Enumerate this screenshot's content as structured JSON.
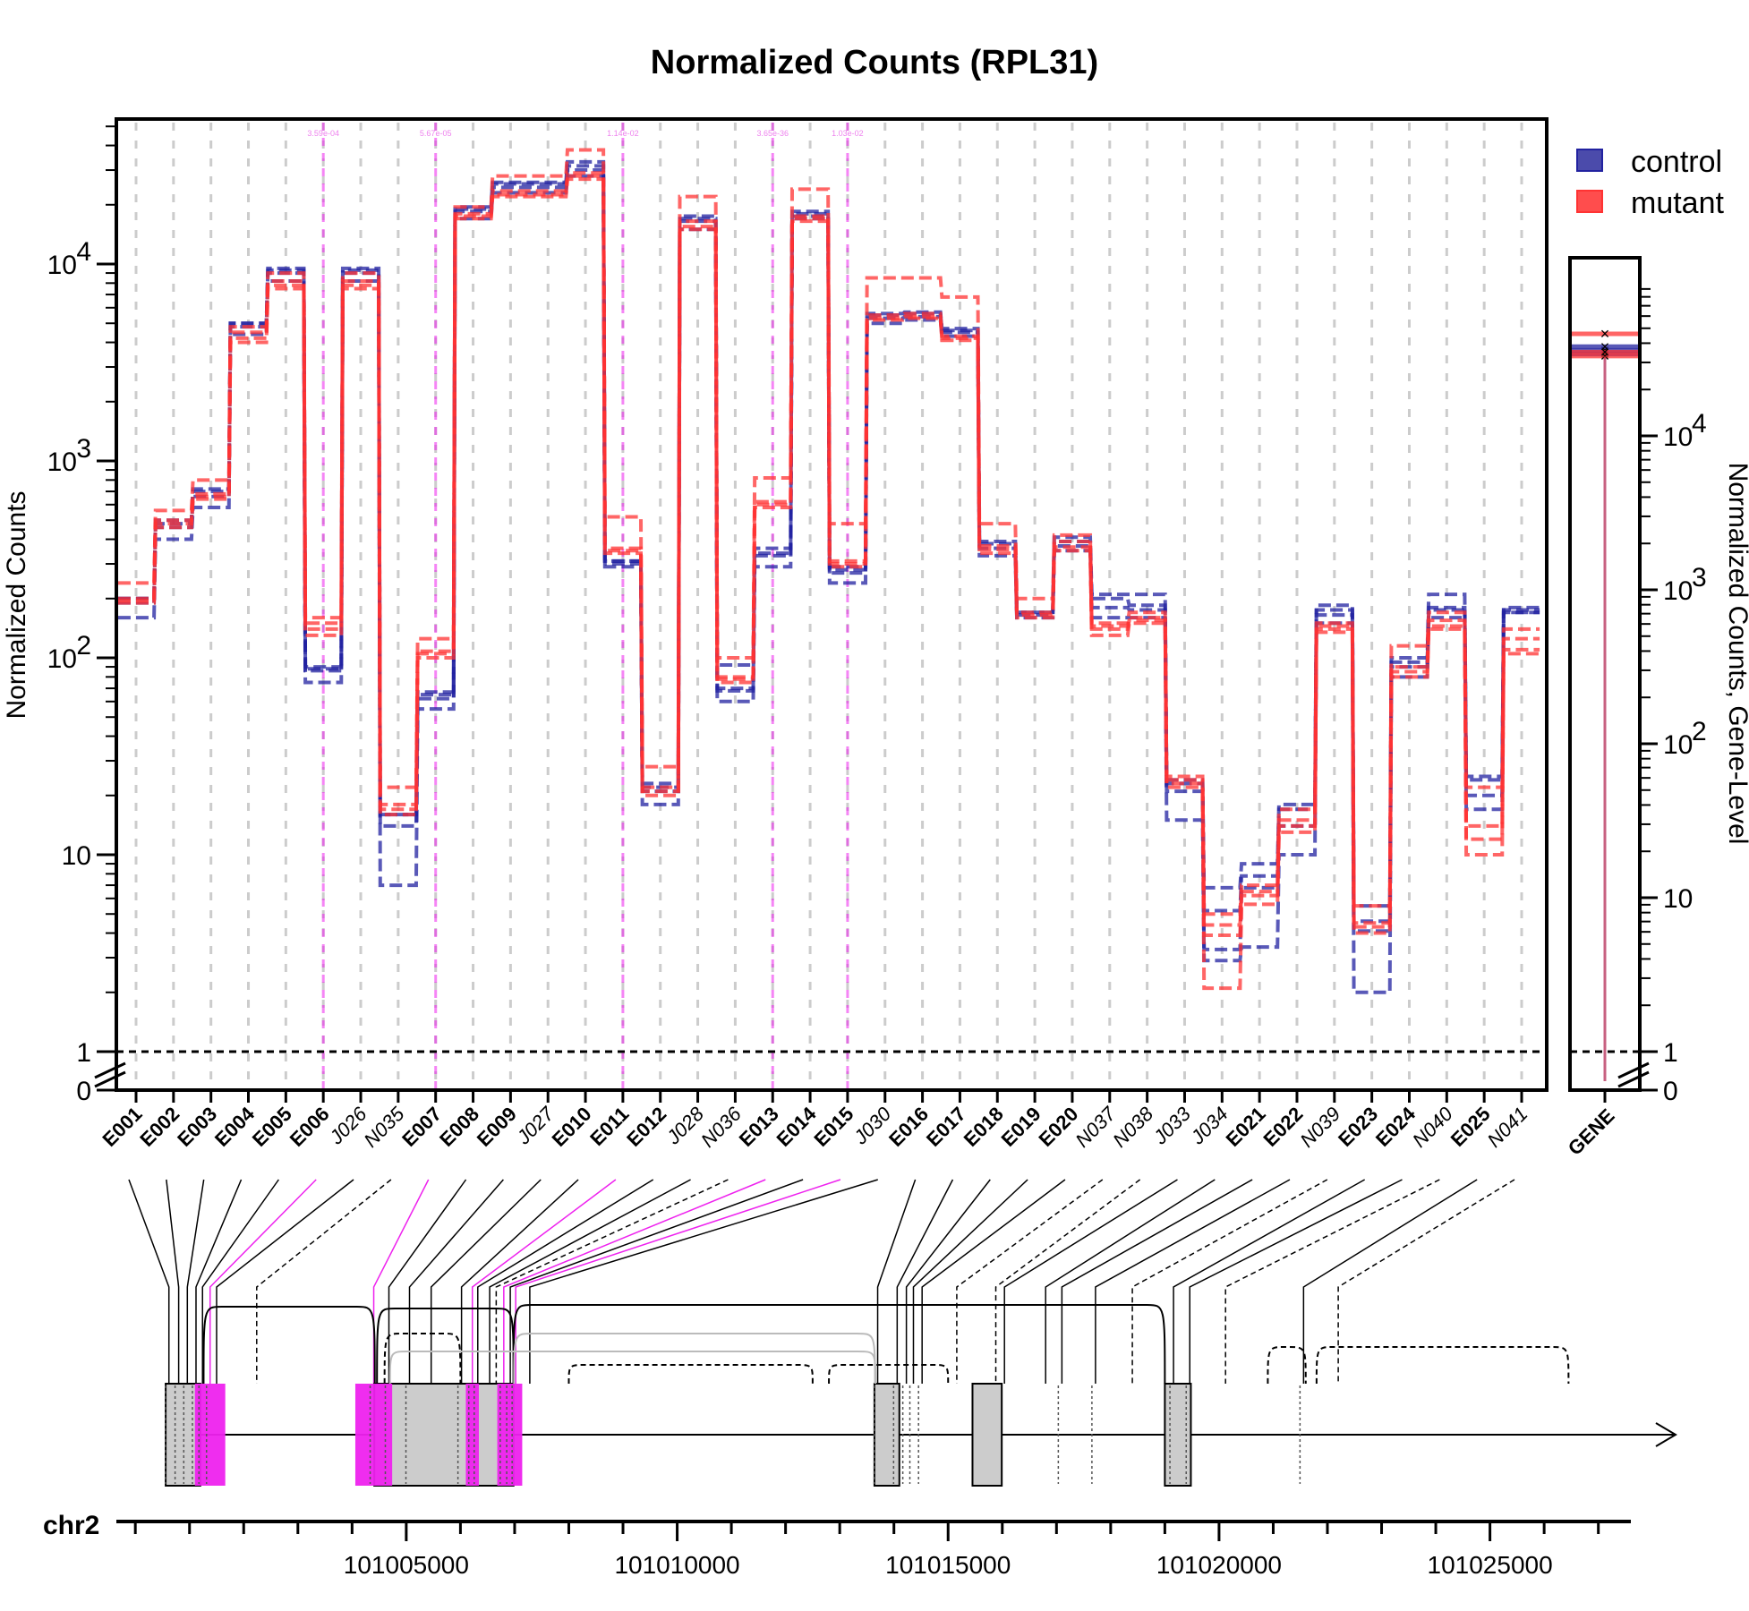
{
  "chart_data": {
    "type": "line",
    "title": "Normalized Counts (RPL31)",
    "ylabel": "Normalized Counts",
    "ylabel_right": "Normalized Counts, Gene-Level",
    "y_scale": "log",
    "y_ticks": [
      {
        "value": 0,
        "label": "0"
      },
      {
        "value": 1,
        "label": "1"
      },
      {
        "value": 10,
        "label": "10"
      },
      {
        "value": 100,
        "label": "10",
        "sup": "2"
      },
      {
        "value": 1000,
        "label": "10",
        "sup": "3"
      },
      {
        "value": 10000,
        "label": "10",
        "sup": "4"
      }
    ],
    "gene_y_ticks": [
      {
        "value": 0,
        "label": "0"
      },
      {
        "value": 1,
        "label": "1"
      },
      {
        "value": 10,
        "label": "10"
      },
      {
        "value": 100,
        "label": "10",
        "sup": "2"
      },
      {
        "value": 1000,
        "label": "10",
        "sup": "3"
      },
      {
        "value": 10000,
        "label": "10",
        "sup": "4"
      }
    ],
    "grid": true,
    "legend_position": "top-right",
    "colors": {
      "control": "#2222a0",
      "mutant": "#ff3333",
      "highlight": "#ee22ee",
      "grid": "#cccccc",
      "exon_fill": "#cccccc"
    },
    "features": [
      {
        "id": "E001",
        "kind": "exon",
        "sig": false
      },
      {
        "id": "E002",
        "kind": "exon",
        "sig": false
      },
      {
        "id": "E003",
        "kind": "exon",
        "sig": false
      },
      {
        "id": "E004",
        "kind": "exon",
        "sig": false
      },
      {
        "id": "E005",
        "kind": "exon",
        "sig": false
      },
      {
        "id": "E006",
        "kind": "exon",
        "sig": true,
        "p": "3.59e-04"
      },
      {
        "id": "J026",
        "kind": "junction",
        "sig": false
      },
      {
        "id": "N035",
        "kind": "novel",
        "sig": false
      },
      {
        "id": "E007",
        "kind": "exon",
        "sig": true,
        "p": "5.67e-05"
      },
      {
        "id": "E008",
        "kind": "exon",
        "sig": false
      },
      {
        "id": "E009",
        "kind": "exon",
        "sig": false
      },
      {
        "id": "J027",
        "kind": "junction",
        "sig": false
      },
      {
        "id": "E010",
        "kind": "exon",
        "sig": false
      },
      {
        "id": "E011",
        "kind": "exon",
        "sig": true,
        "p": "1.14e-02"
      },
      {
        "id": "E012",
        "kind": "exon",
        "sig": false
      },
      {
        "id": "J028",
        "kind": "junction",
        "sig": false
      },
      {
        "id": "N036",
        "kind": "novel",
        "sig": false
      },
      {
        "id": "E013",
        "kind": "exon",
        "sig": true,
        "p": "3.65e-36"
      },
      {
        "id": "E014",
        "kind": "exon",
        "sig": false
      },
      {
        "id": "E015",
        "kind": "exon",
        "sig": true,
        "p": "1.03e-02"
      },
      {
        "id": "J030",
        "kind": "junction",
        "sig": false
      },
      {
        "id": "E016",
        "kind": "exon",
        "sig": false
      },
      {
        "id": "E017",
        "kind": "exon",
        "sig": false
      },
      {
        "id": "E018",
        "kind": "exon",
        "sig": false
      },
      {
        "id": "E019",
        "kind": "exon",
        "sig": false
      },
      {
        "id": "E020",
        "kind": "exon",
        "sig": false
      },
      {
        "id": "N037",
        "kind": "novel",
        "sig": false
      },
      {
        "id": "N038",
        "kind": "novel",
        "sig": false
      },
      {
        "id": "J033",
        "kind": "junction",
        "sig": false
      },
      {
        "id": "J034",
        "kind": "junction",
        "sig": false
      },
      {
        "id": "E021",
        "kind": "exon",
        "sig": false
      },
      {
        "id": "E022",
        "kind": "exon",
        "sig": false
      },
      {
        "id": "N039",
        "kind": "novel",
        "sig": false
      },
      {
        "id": "E023",
        "kind": "exon",
        "sig": false
      },
      {
        "id": "E024",
        "kind": "exon",
        "sig": false
      },
      {
        "id": "N040",
        "kind": "novel",
        "sig": false
      },
      {
        "id": "E025",
        "kind": "exon",
        "sig": false
      },
      {
        "id": "N041",
        "kind": "novel",
        "sig": false
      }
    ],
    "series": [
      {
        "name": "control",
        "group": "control",
        "values": [
          160,
          400,
          580,
          4400,
          8200,
          75,
          8200,
          7,
          55,
          17000,
          23000,
          23000,
          28000,
          290,
          18,
          15000,
          60,
          290,
          17000,
          240,
          5000,
          5200,
          4300,
          330,
          160,
          350,
          160,
          160,
          15,
          2.9,
          3.4,
          10,
          150,
          2,
          80,
          160,
          17,
          170
        ]
      },
      {
        "name": "control",
        "group": "control",
        "values": [
          190,
          460,
          660,
          4800,
          9000,
          86,
          9000,
          14,
          62,
          18500,
          24500,
          24500,
          30000,
          300,
          21,
          16500,
          68,
          330,
          17500,
          270,
          5300,
          5400,
          4500,
          360,
          165,
          370,
          180,
          175,
          21,
          3.3,
          6.8,
          14,
          165,
          4.1,
          90,
          175,
          20,
          170
        ]
      },
      {
        "name": "control",
        "group": "control",
        "values": [
          200,
          480,
          700,
          5000,
          9300,
          90,
          9300,
          16,
          65,
          19000,
          25500,
          25500,
          31500,
          310,
          22,
          17000,
          70,
          340,
          18000,
          280,
          5500,
          5600,
          4600,
          380,
          170,
          390,
          200,
          185,
          23,
          5.2,
          7.8,
          17,
          175,
          4.6,
          95,
          180,
          24,
          175
        ]
      },
      {
        "name": "control",
        "group": "control",
        "values": [
          200,
          500,
          720,
          5000,
          9500,
          88,
          9500,
          16,
          67,
          19500,
          26000,
          26000,
          33000,
          310,
          23,
          17500,
          92,
          360,
          18500,
          290,
          5600,
          5700,
          4700,
          390,
          170,
          410,
          210,
          210,
          24,
          6.8,
          9,
          18,
          185,
          5.5,
          100,
          210,
          25,
          180
        ]
      },
      {
        "name": "mutant",
        "group": "mutant",
        "values": [
          190,
          460,
          640,
          4000,
          7500,
          130,
          7500,
          16,
          100,
          17000,
          22000,
          22000,
          27000,
          340,
          20,
          15000,
          75,
          580,
          16500,
          290,
          5200,
          5300,
          4100,
          340,
          160,
          350,
          130,
          150,
          22,
          2.1,
          5.6,
          13,
          135,
          4,
          80,
          140,
          10,
          105
        ]
      },
      {
        "name": "mutant",
        "group": "mutant",
        "values": [
          195,
          480,
          660,
          4200,
          7800,
          140,
          7800,
          17,
          105,
          17500,
          22500,
          22500,
          28000,
          350,
          21,
          15500,
          78,
          600,
          17000,
          300,
          5300,
          5400,
          4200,
          355,
          165,
          365,
          140,
          155,
          23,
          3.9,
          6.2,
          14,
          140,
          4.3,
          85,
          145,
          12,
          110
        ]
      },
      {
        "name": "mutant",
        "group": "mutant",
        "values": [
          200,
          500,
          680,
          4500,
          8200,
          150,
          8200,
          18,
          108,
          18000,
          23500,
          23500,
          29000,
          360,
          22,
          16500,
          80,
          620,
          17500,
          310,
          5500,
          5600,
          4300,
          370,
          170,
          390,
          145,
          160,
          24,
          4.4,
          6.5,
          15,
          145,
          4.5,
          90,
          155,
          14,
          125
        ]
      },
      {
        "name": "mutant",
        "group": "mutant",
        "values": [
          240,
          560,
          800,
          4800,
          9000,
          160,
          9000,
          22,
          125,
          19500,
          28000,
          28000,
          38000,
          520,
          28,
          22000,
          100,
          820,
          24000,
          480,
          8500,
          8500,
          6800,
          480,
          200,
          420,
          150,
          170,
          25,
          5,
          7,
          17,
          150,
          5.5,
          115,
          170,
          22,
          140
        ]
      }
    ],
    "gene_level": [
      {
        "group": "control",
        "values": [
          34000,
          36000,
          38000
        ]
      },
      {
        "group": "mutant",
        "values": [
          33000,
          35000,
          46000
        ]
      }
    ],
    "genome": {
      "chrom": "chr2",
      "gene_start": 101000560,
      "gene_end": 101024820,
      "ticks": [
        101000000,
        101001000,
        101002000,
        101003000,
        101004000,
        101005000,
        101006000,
        101007000,
        101008000,
        101009000,
        101010000,
        101011000,
        101012000,
        101013000,
        101014000,
        101015000,
        101016000,
        101017000,
        101018000,
        101019000,
        101020000,
        101021000,
        101022000,
        101023000,
        101024000,
        101025000,
        101026000,
        101027000
      ],
      "labeled_ticks": [
        101005000,
        101010000,
        101015000,
        101020000,
        101025000
      ],
      "exon_blocks": [
        [
          101000560,
          101001200
        ],
        [
          101004410,
          101006980
        ],
        [
          101013640,
          101014100
        ],
        [
          101015450,
          101015990
        ],
        [
          101019000,
          101019480
        ]
      ],
      "feature_pos": [
        101000620,
        101000800,
        101000960,
        101001120,
        101001240,
        101001380,
        101001500,
        101002240,
        101004400,
        101004680,
        101005060,
        101005460,
        101006020,
        101006220,
        101006320,
        101006540,
        101006660,
        101006800,
        101006920,
        101007020,
        101007280,
        101013700,
        101014060,
        101014230,
        101014360,
        101014520,
        101015160,
        101015880,
        101016040,
        101016800,
        101017100,
        101017720,
        101018400,
        101019160,
        101019460,
        101020120,
        101021560,
        101022200
      ]
    }
  }
}
